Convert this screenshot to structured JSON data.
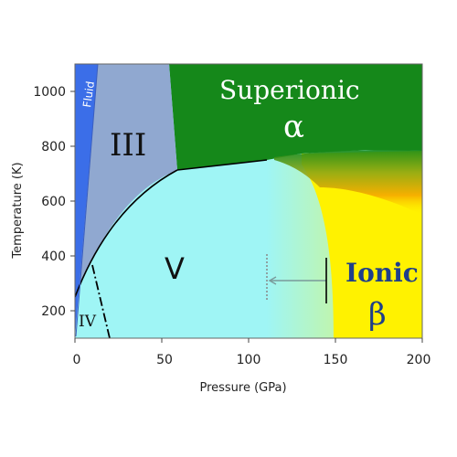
{
  "axes": {
    "xlabel": "Pressure (GPa)",
    "ylabel": "Temperature (K)",
    "xlim": [
      0,
      200
    ],
    "ylim": [
      100,
      1100
    ],
    "xticks": [
      "0",
      "50",
      "100",
      "150",
      "200"
    ],
    "yticks": [
      "200",
      "400",
      "600",
      "800",
      "1000"
    ]
  },
  "phases": {
    "fluid": "Fluid",
    "iii": "III",
    "superionic": "Superionic",
    "alpha": "α",
    "v": "V",
    "iv": "IV",
    "ionic": "Ionic",
    "beta": "β"
  },
  "colors": {
    "fluid": "#3b6ee8",
    "iii": "#90a8d0",
    "superionic": "#15881a",
    "v": "#9ff5f5",
    "ionic": "#fff200",
    "ionic_band": "#f5a800",
    "boundary": "#000000",
    "ionic_label": "#1f3f8a",
    "arrow": "#7a9a9a"
  },
  "boundaries_pgpa_tk": {
    "fluid_iii": [
      [
        0,
        100
      ],
      [
        10,
        1100
      ]
    ],
    "iii_superionic": [
      [
        54,
        1100
      ],
      [
        59,
        710
      ]
    ],
    "superionic_v": [
      [
        59,
        710
      ],
      [
        110,
        750
      ]
    ],
    "iii_v": [
      [
        0,
        245
      ],
      [
        25,
        470
      ],
      [
        59,
        710
      ]
    ],
    "iv_v_dashdot": [
      [
        10,
        390
      ],
      [
        20,
        100
      ]
    ]
  },
  "arrow_pgpa_tk": {
    "from": [
      144,
      320
    ],
    "to": [
      110,
      320
    ]
  }
}
